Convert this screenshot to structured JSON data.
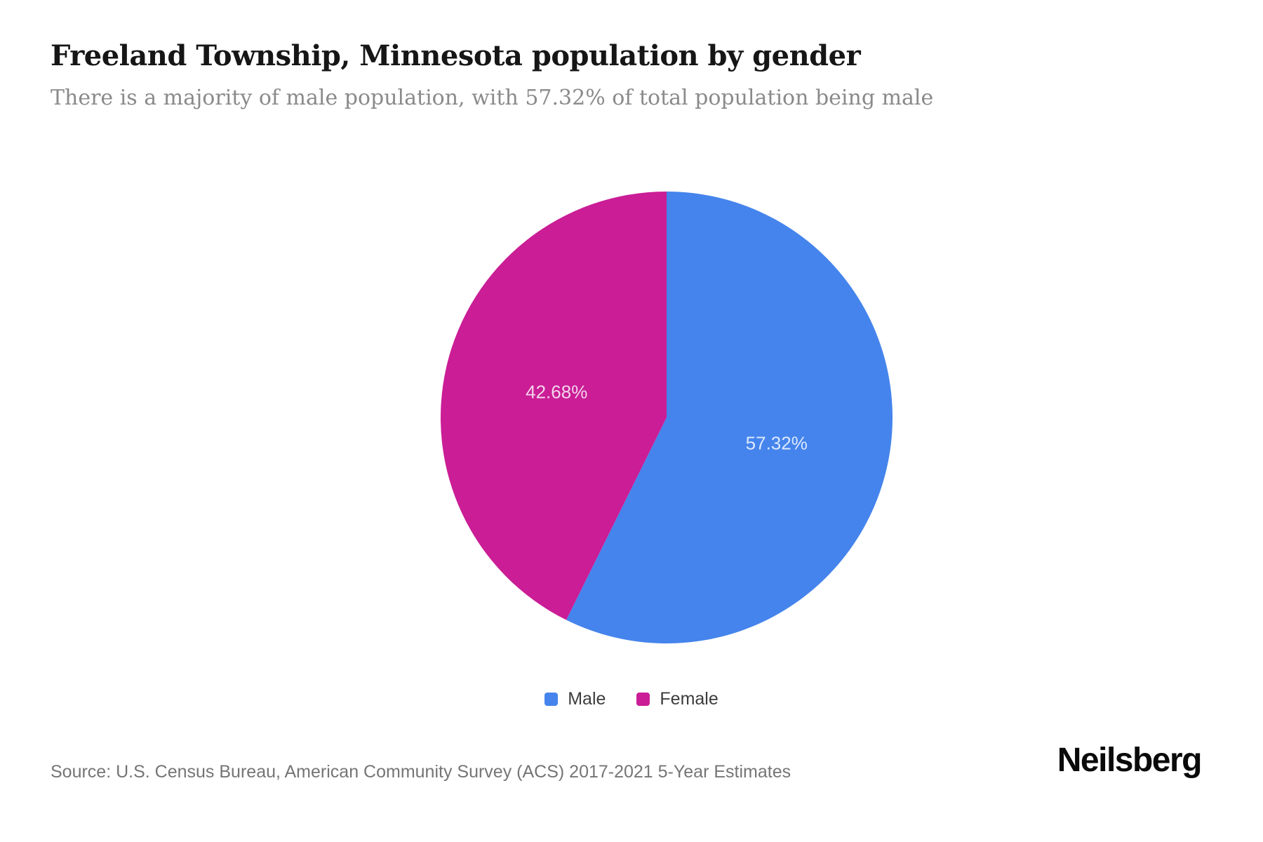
{
  "header": {
    "title": "Freeland Township, Minnesota population by gender",
    "subtitle": "There is a majority of male population, with 57.32% of total population being male"
  },
  "chart_data": {
    "type": "pie",
    "title": "Freeland Township, Minnesota population by gender",
    "categories": [
      "Male",
      "Female"
    ],
    "values": [
      57.32,
      42.68
    ],
    "slices": [
      {
        "name": "Male",
        "value": 57.32,
        "label": "57.32%",
        "color": "#4584EC",
        "label_color": "#DCE9FC"
      },
      {
        "name": "Female",
        "value": 42.68,
        "label": "42.68%",
        "color": "#CA1D96",
        "label_color": "#F4D4EC"
      }
    ],
    "start_angle_deg": 0,
    "direction": "clockwise",
    "legend_position": "bottom",
    "label_radius_ratio": 0.5
  },
  "footer": {
    "source": "Source: U.S. Census Bureau, American Community Survey (ACS) 2017-2021 5-Year Estimates",
    "brand": "Neilsberg"
  }
}
